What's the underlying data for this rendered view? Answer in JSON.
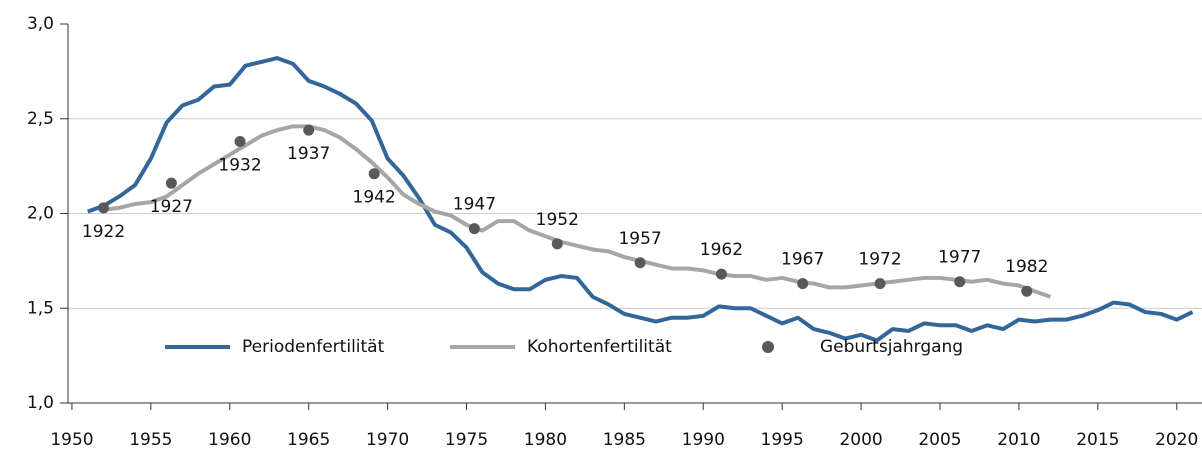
{
  "chart_data": {
    "type": "line",
    "xlim": [
      1949.75,
      2021.6
    ],
    "ylim": [
      1.0,
      3.0
    ],
    "xticks": [
      1950,
      1955,
      1960,
      1965,
      1970,
      1975,
      1980,
      1985,
      1990,
      1995,
      2000,
      2005,
      2010,
      2015,
      2020
    ],
    "yticks": [
      {
        "value": 1.0,
        "label": "1,0"
      },
      {
        "value": 1.5,
        "label": "1,5"
      },
      {
        "value": 2.0,
        "label": "2,0"
      },
      {
        "value": 2.5,
        "label": "2,5"
      },
      {
        "value": 3.0,
        "label": "3,0"
      }
    ],
    "grid": true,
    "series": [
      {
        "name": "Periodenfertilität",
        "type": "line",
        "color": "#336699",
        "x": [
          1951,
          1952,
          1953,
          1954,
          1955,
          1956,
          1957,
          1958,
          1959,
          1960,
          1961,
          1962,
          1963,
          1964,
          1965,
          1966,
          1967,
          1968,
          1969,
          1970,
          1971,
          1972,
          1973,
          1974,
          1975,
          1976,
          1977,
          1978,
          1979,
          1980,
          1981,
          1982,
          1983,
          1984,
          1985,
          1986,
          1987,
          1988,
          1989,
          1990,
          1991,
          1992,
          1993,
          1994,
          1995,
          1996,
          1997,
          1998,
          1999,
          2000,
          2001,
          2002,
          2003,
          2004,
          2005,
          2006,
          2007,
          2008,
          2009,
          2010,
          2011,
          2012,
          2013,
          2014,
          2015,
          2016,
          2017,
          2018,
          2019,
          2020,
          2021
        ],
        "values": [
          2.01,
          2.04,
          2.09,
          2.15,
          2.29,
          2.48,
          2.57,
          2.6,
          2.67,
          2.68,
          2.78,
          2.8,
          2.82,
          2.79,
          2.7,
          2.67,
          2.63,
          2.58,
          2.49,
          2.29,
          2.2,
          2.08,
          1.94,
          1.9,
          1.82,
          1.69,
          1.63,
          1.6,
          1.6,
          1.65,
          1.67,
          1.66,
          1.56,
          1.52,
          1.47,
          1.45,
          1.43,
          1.45,
          1.45,
          1.46,
          1.51,
          1.5,
          1.5,
          1.46,
          1.42,
          1.45,
          1.39,
          1.37,
          1.34,
          1.36,
          1.33,
          1.39,
          1.38,
          1.42,
          1.41,
          1.41,
          1.38,
          1.41,
          1.39,
          1.44,
          1.43,
          1.44,
          1.44,
          1.46,
          1.49,
          1.53,
          1.52,
          1.48,
          1.47,
          1.44,
          1.48
        ]
      },
      {
        "name": "Kohortenfertilität",
        "type": "line",
        "color": "#a6a6a6",
        "x": [
          1952,
          1953,
          1954,
          1955,
          1956,
          1957,
          1958,
          1959,
          1960,
          1961,
          1962,
          1963,
          1964,
          1965,
          1966,
          1967,
          1968,
          1969,
          1970,
          1971,
          1972,
          1973,
          1974,
          1975,
          1976,
          1977,
          1978,
          1979,
          1980,
          1981,
          1982,
          1983,
          1984,
          1985,
          1986,
          1987,
          1988,
          1989,
          1990,
          1991,
          1992,
          1993,
          1994,
          1995,
          1996,
          1997,
          1998,
          1999,
          2000,
          2001,
          2002,
          2003,
          2004,
          2005,
          2006,
          2007,
          2008,
          2009,
          2010,
          2011,
          2012
        ],
        "values": [
          2.02,
          2.03,
          2.05,
          2.06,
          2.09,
          2.15,
          2.21,
          2.26,
          2.31,
          2.36,
          2.41,
          2.44,
          2.46,
          2.46,
          2.44,
          2.4,
          2.34,
          2.27,
          2.19,
          2.1,
          2.05,
          2.01,
          1.99,
          1.94,
          1.91,
          1.96,
          1.96,
          1.91,
          1.88,
          1.85,
          1.83,
          1.81,
          1.8,
          1.77,
          1.75,
          1.73,
          1.71,
          1.71,
          1.7,
          1.68,
          1.67,
          1.67,
          1.65,
          1.66,
          1.64,
          1.63,
          1.61,
          1.61,
          1.62,
          1.63,
          1.64,
          1.65,
          1.66,
          1.66,
          1.65,
          1.64,
          1.65,
          1.63,
          1.62,
          1.59,
          1.56
        ]
      },
      {
        "name": "Geburtsjahrgang",
        "type": "scatter",
        "color": "#595959",
        "x": [
          1952.0,
          1956.3,
          1960.65,
          1965.0,
          1969.15,
          1975.5,
          1980.75,
          1986.0,
          1991.15,
          1996.3,
          2001.2,
          2006.25,
          2010.5
        ],
        "values": [
          2.03,
          2.16,
          2.38,
          2.44,
          2.21,
          1.92,
          1.84,
          1.74,
          1.68,
          1.63,
          1.63,
          1.64,
          1.59
        ],
        "labels": [
          "1922",
          "1927",
          "1932",
          "1937",
          "1942",
          "1947",
          "1952",
          "1957",
          "1962",
          "1967",
          "1972",
          "1977",
          "1982"
        ]
      }
    ]
  }
}
